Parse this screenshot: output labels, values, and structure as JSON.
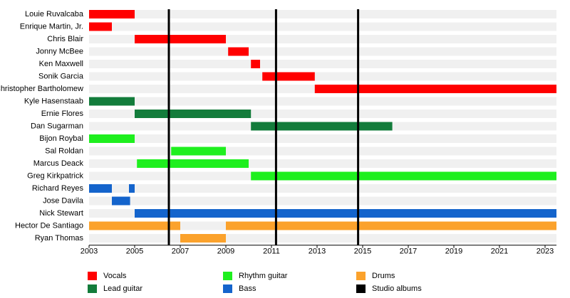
{
  "chart_data": {
    "type": "timeline",
    "xlim": [
      2003,
      2023.5
    ],
    "xticks": [
      2003,
      2005,
      2007,
      2009,
      2011,
      2013,
      2015,
      2017,
      2019,
      2021,
      2023
    ],
    "series": [
      {
        "name": "Vocals",
        "color": "#ff0000",
        "members": [
          {
            "name": "Louie Ruvalcaba",
            "periods": [
              [
                2003,
                2005
              ]
            ]
          },
          {
            "name": "Enrique Martin, Jr.",
            "periods": [
              [
                2003,
                2004
              ]
            ]
          },
          {
            "name": "Chris Blair",
            "periods": [
              [
                2005,
                2009
              ]
            ]
          },
          {
            "name": "Jonny McBee",
            "periods": [
              [
                2009.1,
                2010
              ]
            ]
          },
          {
            "name": "Ken Maxwell",
            "periods": [
              [
                2010.1,
                2010.5
              ]
            ]
          },
          {
            "name": "Sonik Garcia",
            "periods": [
              [
                2010.6,
                2012.9
              ]
            ]
          },
          {
            "name": "Christopher Bartholomew",
            "periods": [
              [
                2012.9,
                2023.5
              ]
            ]
          }
        ]
      },
      {
        "name": "Lead guitar",
        "color": "#137c3b",
        "members": [
          {
            "name": "Kyle Hasenstaab",
            "periods": [
              [
                2003,
                2005
              ]
            ]
          },
          {
            "name": "Ernie Flores",
            "periods": [
              [
                2005,
                2010.1
              ]
            ]
          },
          {
            "name": "Dan Sugarman",
            "periods": [
              [
                2010.1,
                2016.3
              ]
            ]
          }
        ]
      },
      {
        "name": "Rhythm guitar",
        "color": "#1eef1e",
        "members": [
          {
            "name": "Bijon Roybal",
            "periods": [
              [
                2003,
                2005
              ]
            ]
          },
          {
            "name": "Sal Roldan",
            "periods": [
              [
                2006.6,
                2009
              ]
            ]
          },
          {
            "name": "Marcus Deack",
            "periods": [
              [
                2005.1,
                2010
              ]
            ]
          },
          {
            "name": "Greg Kirkpatrick",
            "periods": [
              [
                2010.1,
                2023.5
              ]
            ]
          }
        ]
      },
      {
        "name": "Bass",
        "color": "#1464cc",
        "members": [
          {
            "name": "Richard Reyes",
            "periods": [
              [
                2003,
                2004
              ],
              [
                2004.75,
                2005
              ]
            ]
          },
          {
            "name": "Jose Davila",
            "periods": [
              [
                2004,
                2004.8
              ]
            ]
          },
          {
            "name": "Nick Stewart",
            "periods": [
              [
                2005,
                2023.5
              ]
            ]
          }
        ]
      },
      {
        "name": "Drums",
        "color": "#fba22c",
        "members": [
          {
            "name": "Hector De Santiago",
            "periods": [
              [
                2003,
                2007
              ],
              [
                2009,
                2023.5
              ]
            ]
          },
          {
            "name": "Ryan Thomas",
            "periods": [
              [
                2007,
                2009
              ]
            ]
          }
        ]
      },
      {
        "name": "Studio albums",
        "color": "#000000",
        "dates": [
          2006.5,
          2011.2,
          2014.8
        ]
      }
    ]
  }
}
